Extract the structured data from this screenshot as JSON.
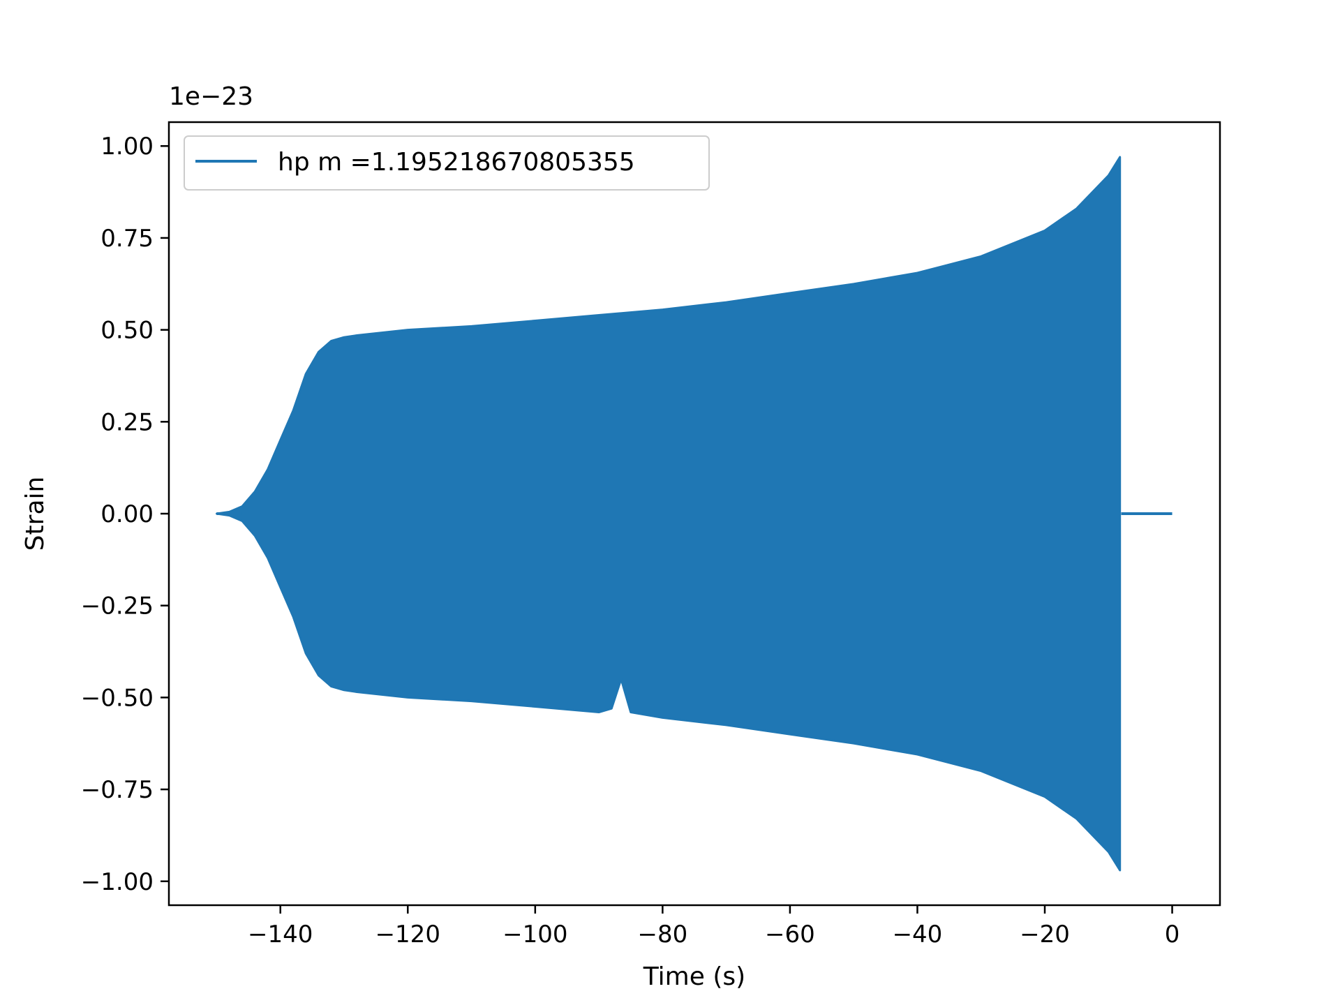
{
  "chart_data": {
    "type": "line",
    "title": "",
    "xlabel": "Time (s)",
    "ylabel": "Strain",
    "y_offset_label": "1e−23",
    "y_scale_exponent": -23,
    "xlim": [
      -157.5,
      7.5
    ],
    "ylim": [
      -1.065,
      1.065
    ],
    "xticks": [
      -140,
      -120,
      -100,
      -80,
      -60,
      -40,
      -20,
      0
    ],
    "xtick_labels": [
      "−140",
      "−120",
      "−100",
      "−80",
      "−60",
      "−40",
      "−20",
      "0"
    ],
    "yticks": [
      1.0,
      0.75,
      0.5,
      0.25,
      0.0,
      -0.25,
      -0.5,
      -0.75,
      -1.0
    ],
    "ytick_labels": [
      "1.00",
      "0.75",
      "0.50",
      "0.25",
      "0.00",
      "−0.25",
      "−0.50",
      "−0.75",
      "−1.00"
    ],
    "grid": false,
    "legend_position": "upper-left",
    "series": [
      {
        "name": "hp m =1.195218670805355",
        "color": "#1f77b4",
        "envelope_upper": {
          "x": [
            -150,
            -148,
            -146,
            -144,
            -142,
            -140,
            -138,
            -136,
            -134,
            -132,
            -130,
            -128,
            -120,
            -110,
            -100,
            -90,
            -80,
            -70,
            -60,
            -50,
            -40,
            -30,
            -20,
            -15,
            -10,
            -8.2
          ],
          "y": [
            0.0,
            0.005,
            0.02,
            0.06,
            0.12,
            0.2,
            0.28,
            0.38,
            0.44,
            0.47,
            0.48,
            0.485,
            0.5,
            0.51,
            0.525,
            0.54,
            0.555,
            0.575,
            0.6,
            0.625,
            0.655,
            0.7,
            0.77,
            0.83,
            0.92,
            0.97
          ]
        },
        "envelope_lower": {
          "x": [
            -150,
            -148,
            -146,
            -144,
            -142,
            -140,
            -138,
            -136,
            -134,
            -132,
            -130,
            -128,
            -120,
            -110,
            -100,
            -90,
            -88,
            -86.5,
            -85,
            -80,
            -70,
            -60,
            -50,
            -40,
            -30,
            -20,
            -15,
            -10,
            -8.2
          ],
          "y": [
            0.0,
            -0.005,
            -0.02,
            -0.06,
            -0.12,
            -0.2,
            -0.28,
            -0.38,
            -0.44,
            -0.47,
            -0.48,
            -0.485,
            -0.5,
            -0.51,
            -0.525,
            -0.54,
            -0.53,
            -0.45,
            -0.54,
            -0.555,
            -0.575,
            -0.6,
            -0.625,
            -0.655,
            -0.7,
            -0.77,
            -0.83,
            -0.92,
            -0.97
          ]
        },
        "merger_time": -8.0,
        "tail_end_time": 0.0
      }
    ]
  }
}
